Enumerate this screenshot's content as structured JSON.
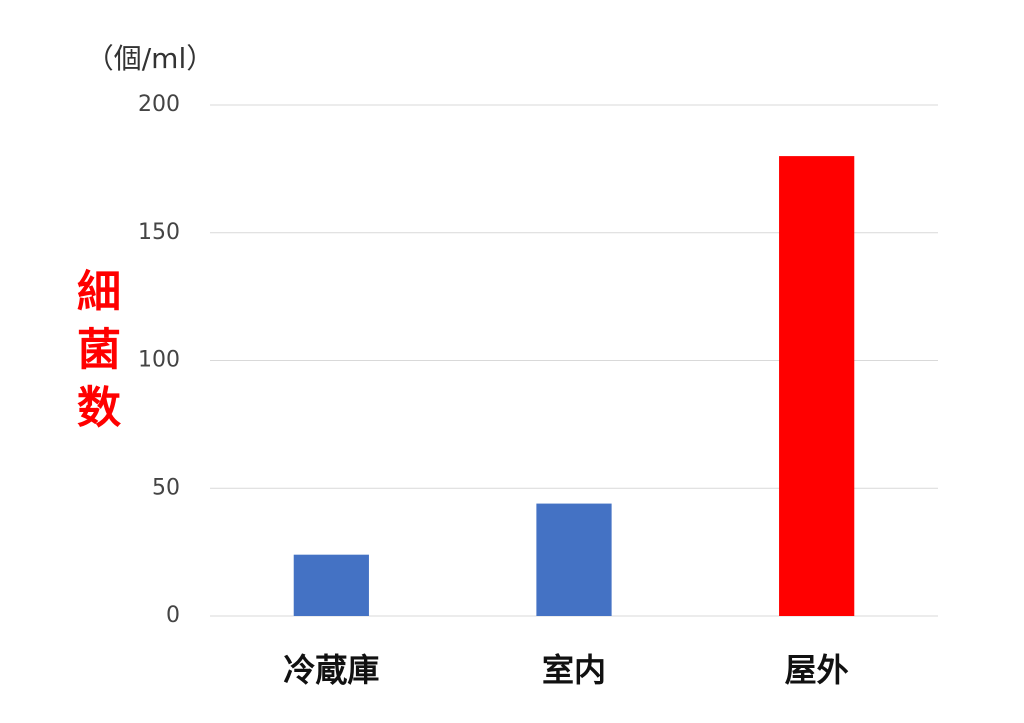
{
  "chart_data": {
    "type": "bar",
    "y_label": "細菌数",
    "y_label_color": "#ff0000",
    "unit_label": "（個/ml）",
    "categories": [
      "冷蔵庫",
      "室内",
      "屋外"
    ],
    "values": [
      24,
      44,
      180
    ],
    "colors": [
      "#4472c4",
      "#4472c4",
      "#ff0000"
    ],
    "ylim": [
      0,
      200
    ],
    "yticks": [
      0,
      50,
      100,
      150,
      200
    ],
    "grid": true
  }
}
